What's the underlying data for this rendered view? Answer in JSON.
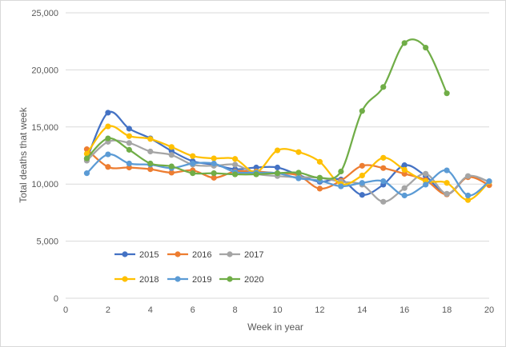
{
  "chart_data": {
    "type": "line",
    "title": "",
    "xlabel": "Week in year",
    "ylabel": "Total deaths that week",
    "xlim": [
      0,
      20
    ],
    "ylim": [
      0,
      25000
    ],
    "x_ticks": [
      0,
      2,
      4,
      6,
      8,
      10,
      12,
      14,
      16,
      18,
      20
    ],
    "y_ticks": [
      0,
      5000,
      10000,
      15000,
      20000,
      25000
    ],
    "y_tick_labels": [
      "0",
      "5,000",
      "10,000",
      "15,000",
      "20,000",
      "25,000"
    ],
    "grid": "horizontal",
    "legend_position": "bottom-left inside",
    "series": [
      {
        "name": "2015",
        "color": "#4472C4",
        "x": [
          1,
          2,
          3,
          4,
          5,
          6,
          7,
          8,
          9,
          10,
          11,
          12,
          13,
          14,
          15,
          16,
          17,
          18,
          19,
          20
        ],
        "values": [
          12200,
          16250,
          14850,
          14000,
          12900,
          12000,
          11700,
          11300,
          11450,
          11450,
          10800,
          10200,
          10400,
          9050,
          9950,
          11650,
          10700,
          9100,
          10650,
          10200
        ]
      },
      {
        "name": "2016",
        "color": "#ED7D31",
        "x": [
          1,
          2,
          3,
          4,
          5,
          6,
          7,
          8,
          9,
          10,
          11,
          12,
          13,
          14,
          15,
          16,
          17,
          18,
          19,
          20
        ],
        "values": [
          13050,
          11500,
          11450,
          11300,
          11000,
          11200,
          10550,
          11100,
          11100,
          10950,
          10750,
          9600,
          10300,
          11600,
          11400,
          10900,
          10350,
          9100,
          10600,
          9900
        ]
      },
      {
        "name": "2017",
        "color": "#A5A5A5",
        "x": [
          1,
          2,
          3,
          4,
          5,
          6,
          7,
          8,
          9,
          10,
          11,
          12,
          13,
          14,
          15,
          16,
          17,
          18,
          19,
          20
        ],
        "values": [
          12050,
          13700,
          13600,
          12850,
          12550,
          11700,
          11600,
          11700,
          10900,
          10700,
          10600,
          10550,
          10200,
          9950,
          8450,
          9650,
          10900,
          9150,
          10700,
          10200
        ]
      },
      {
        "name": "2018",
        "color": "#FFC000",
        "x": [
          1,
          2,
          3,
          4,
          5,
          6,
          7,
          8,
          9,
          10,
          11,
          12,
          13,
          14,
          15,
          16,
          17,
          18,
          19,
          20
        ],
        "values": [
          12650,
          15050,
          14200,
          13950,
          13250,
          12450,
          12250,
          12200,
          11050,
          12950,
          12800,
          11950,
          10000,
          10750,
          12300,
          11250,
          10250,
          10100,
          8600,
          10200
        ]
      },
      {
        "name": "2019",
        "color": "#5B9BD5",
        "x": [
          1,
          2,
          3,
          4,
          5,
          6,
          7,
          8,
          9,
          10,
          11,
          12,
          13,
          14,
          15,
          16,
          17,
          18,
          19,
          20
        ],
        "values": [
          10950,
          12600,
          11800,
          11700,
          11400,
          11800,
          11800,
          11050,
          11000,
          10950,
          10500,
          10300,
          9800,
          10100,
          10250,
          9000,
          9950,
          11200,
          9000,
          10250
        ]
      },
      {
        "name": "2020",
        "color": "#70AD47",
        "x": [
          1,
          2,
          3,
          4,
          5,
          6,
          7,
          8,
          9,
          10,
          11,
          12,
          13,
          14,
          15,
          16,
          17,
          18
        ],
        "values": [
          12250,
          14000,
          13000,
          11800,
          11550,
          10950,
          10950,
          10850,
          10850,
          10950,
          11000,
          10550,
          11100,
          16400,
          18500,
          22350,
          21950,
          17950
        ]
      }
    ]
  }
}
